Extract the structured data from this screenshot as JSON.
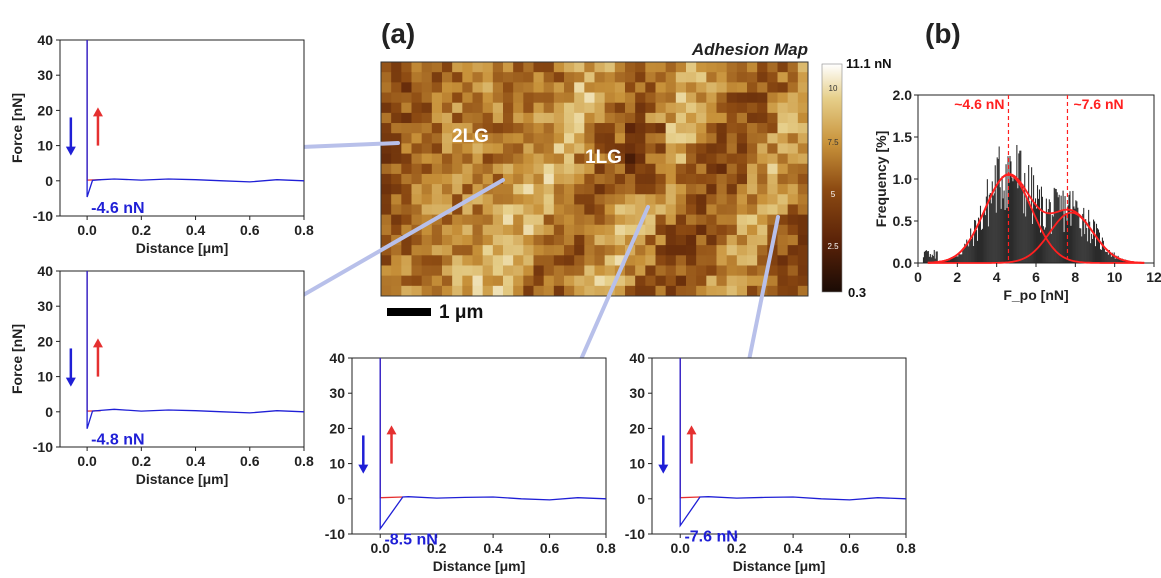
{
  "figure": {
    "panel_a_label": "(a)",
    "panel_b_label": "(b)",
    "map_title": "Adhesion Map",
    "scale_bar_label": "1 μm",
    "region_labels": [
      "2LG",
      "1LG"
    ],
    "colorbar": {
      "max_label": "11.1 nN",
      "min_label": "0.3",
      "ticks": [
        "10",
        "7.5",
        "5",
        "2.5"
      ],
      "colors": [
        "#1a0b05",
        "#5a2208",
        "#8c4a12",
        "#c8923a",
        "#e6cf8a",
        "#ffffff"
      ]
    },
    "colors": {
      "approach": "#1f1fd6",
      "retract": "#e53030",
      "fit": "#ff2020",
      "hist_bar": "#2a2a2a",
      "leader": "#b8c0ea"
    }
  },
  "chart_data": [
    {
      "type": "line",
      "id": "fd-curve-1",
      "xlabel": "Distance [μm]",
      "ylabel": "Force [nN]",
      "xlim": [
        -0.1,
        0.8
      ],
      "ylim": [
        -10,
        40
      ],
      "xticks": [
        "0.0",
        "0.2",
        "0.4",
        "0.6",
        "0.8"
      ],
      "yticks": [
        "-10",
        "0",
        "10",
        "20",
        "30",
        "40"
      ],
      "annotation": "-4.6 nN",
      "pull_off": -4.6,
      "jump_distance": 0.02,
      "series": [
        {
          "direction": "approach",
          "x": [
            0,
            0,
            0.02,
            0.05,
            0.1,
            0.2,
            0.3,
            0.4,
            0.5,
            0.6,
            0.7,
            0.8
          ],
          "y": [
            40,
            -4.6,
            0.1,
            0.3,
            0.5,
            0.2,
            0.5,
            0.3,
            0.0,
            -0.3,
            0.3,
            0.0
          ]
        },
        {
          "direction": "retract",
          "x": [
            0,
            0,
            0.05
          ],
          "y": [
            40,
            0.2,
            0.3
          ]
        }
      ]
    },
    {
      "type": "line",
      "id": "fd-curve-2",
      "xlabel": "Distance [μm]",
      "ylabel": "Force [nN]",
      "xlim": [
        -0.1,
        0.8
      ],
      "ylim": [
        -10,
        40
      ],
      "xticks": [
        "0.0",
        "0.2",
        "0.4",
        "0.6",
        "0.8"
      ],
      "yticks": [
        "-10",
        "0",
        "10",
        "20",
        "30",
        "40"
      ],
      "annotation": "-4.8 nN",
      "pull_off": -4.8,
      "jump_distance": 0.02,
      "series": [
        {
          "direction": "approach",
          "x": [
            0,
            0,
            0.02,
            0.05,
            0.1,
            0.2,
            0.3,
            0.4,
            0.5,
            0.6,
            0.7,
            0.8
          ],
          "y": [
            40,
            -4.8,
            0.2,
            0.4,
            0.7,
            0.2,
            0.5,
            0.3,
            0.0,
            -0.3,
            0.3,
            0.0
          ]
        },
        {
          "direction": "retract",
          "x": [
            0,
            0,
            0.05
          ],
          "y": [
            40,
            0.2,
            0.3
          ]
        }
      ]
    },
    {
      "type": "line",
      "id": "fd-curve-3",
      "xlabel": "Distance [μm]",
      "ylabel": "",
      "xlim": [
        -0.1,
        0.8
      ],
      "ylim": [
        -10,
        40
      ],
      "xticks": [
        "0.0",
        "0.2",
        "0.4",
        "0.6",
        "0.8"
      ],
      "yticks": [
        "-10",
        "0",
        "10",
        "20",
        "30",
        "40"
      ],
      "annotation": "-8.5 nN",
      "pull_off": -8.5,
      "jump_distance": 0.08,
      "series": [
        {
          "direction": "approach",
          "x": [
            0,
            0,
            0.08,
            0.1,
            0.2,
            0.3,
            0.4,
            0.5,
            0.6,
            0.7,
            0.8
          ],
          "y": [
            40,
            -8.5,
            0.5,
            0.6,
            0.2,
            0.4,
            0.5,
            0.0,
            -0.3,
            0.3,
            0.0
          ]
        },
        {
          "direction": "retract",
          "x": [
            0,
            0,
            0.08
          ],
          "y": [
            40,
            0.3,
            0.5
          ]
        }
      ]
    },
    {
      "type": "line",
      "id": "fd-curve-4",
      "xlabel": "Distance [μm]",
      "ylabel": "",
      "xlim": [
        -0.1,
        0.8
      ],
      "ylim": [
        -10,
        40
      ],
      "xticks": [
        "0.0",
        "0.2",
        "0.4",
        "0.6",
        "0.8"
      ],
      "yticks": [
        "-10",
        "0",
        "10",
        "20",
        "30",
        "40"
      ],
      "annotation": "-7.6 nN",
      "pull_off": -7.6,
      "jump_distance": 0.07,
      "series": [
        {
          "direction": "approach",
          "x": [
            0,
            0,
            0.07,
            0.1,
            0.2,
            0.3,
            0.4,
            0.5,
            0.6,
            0.7,
            0.8
          ],
          "y": [
            40,
            -7.6,
            0.5,
            0.6,
            0.2,
            0.4,
            0.5,
            0.0,
            -0.3,
            0.3,
            0.0
          ]
        },
        {
          "direction": "retract",
          "x": [
            0,
            0,
            0.07
          ],
          "y": [
            40,
            0.3,
            0.5
          ]
        }
      ]
    },
    {
      "type": "bar",
      "id": "histogram",
      "xlabel": "F_po [nN]",
      "ylabel": "Frequency [%]",
      "xlim": [
        0,
        12
      ],
      "ylim": [
        0,
        2.0
      ],
      "xticks": [
        "0",
        "2",
        "4",
        "6",
        "8",
        "10",
        "12"
      ],
      "yticks": [
        "0.0",
        "0.5",
        "1.0",
        "1.5",
        "2.0"
      ],
      "peak_labels": [
        "~4.6 nN",
        "~7.6 nN"
      ],
      "peak_positions": [
        4.6,
        7.6
      ],
      "gaussians": [
        {
          "center": 4.6,
          "sigma": 1.2,
          "amplitude": 1.05
        },
        {
          "center": 7.8,
          "sigma": 1.1,
          "amplitude": 0.6
        }
      ],
      "bins": {
        "start": 0.25,
        "width": 0.05,
        "count": 210
      }
    }
  ]
}
